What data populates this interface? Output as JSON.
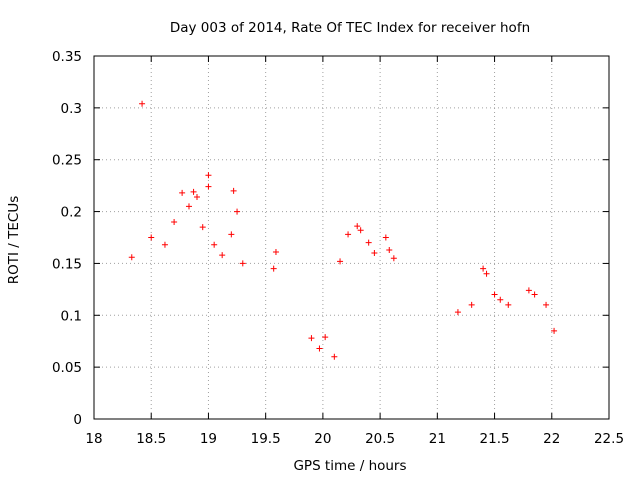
{
  "chart_data": {
    "type": "scatter",
    "title": "Day 003 of 2014, Rate Of TEC Index for receiver hofn",
    "xlabel": "GPS time / hours",
    "ylabel": "ROTI / TECUs",
    "xlim": [
      18,
      22.5
    ],
    "ylim": [
      0,
      0.35
    ],
    "xticks": [
      18,
      18.5,
      19,
      19.5,
      20,
      20.5,
      21,
      21.5,
      22,
      22.5
    ],
    "xtick_labels": [
      "18",
      "18.5",
      "19",
      "19.5",
      "20",
      "20.5",
      "21",
      "21.5",
      "22",
      "22.5"
    ],
    "yticks": [
      0,
      0.05,
      0.1,
      0.15,
      0.2,
      0.25,
      0.3,
      0.35
    ],
    "ytick_labels": [
      "0",
      "0.05",
      "0.1",
      "0.15",
      "0.2",
      "0.25",
      "0.3",
      "0.35"
    ],
    "grid": true,
    "marker": "+",
    "color": "#ff0000",
    "series": [
      {
        "name": "ROTI",
        "points": [
          [
            18.42,
            0.304
          ],
          [
            19.0,
            0.235
          ],
          [
            19.0,
            0.224
          ],
          [
            18.87,
            0.219
          ],
          [
            19.22,
            0.22
          ],
          [
            18.77,
            0.218
          ],
          [
            18.9,
            0.214
          ],
          [
            19.25,
            0.2
          ],
          [
            18.83,
            0.205
          ],
          [
            18.33,
            0.156
          ],
          [
            19.59,
            0.161
          ],
          [
            19.57,
            0.145
          ],
          [
            18.5,
            0.175
          ],
          [
            18.62,
            0.168
          ],
          [
            18.95,
            0.185
          ],
          [
            19.2,
            0.178
          ],
          [
            18.7,
            0.19
          ],
          [
            19.05,
            0.168
          ],
          [
            19.12,
            0.158
          ],
          [
            19.3,
            0.15
          ],
          [
            20.3,
            0.186
          ],
          [
            20.33,
            0.182
          ],
          [
            20.22,
            0.178
          ],
          [
            20.4,
            0.17
          ],
          [
            20.58,
            0.163
          ],
          [
            20.62,
            0.155
          ],
          [
            20.55,
            0.175
          ],
          [
            20.15,
            0.152
          ],
          [
            20.45,
            0.16
          ],
          [
            21.4,
            0.145
          ],
          [
            21.43,
            0.14
          ],
          [
            21.5,
            0.12
          ],
          [
            21.55,
            0.115
          ],
          [
            21.3,
            0.11
          ],
          [
            21.62,
            0.11
          ],
          [
            21.8,
            0.124
          ],
          [
            21.85,
            0.12
          ],
          [
            21.95,
            0.11
          ],
          [
            21.18,
            0.103
          ],
          [
            22.02,
            0.085
          ],
          [
            20.02,
            0.079
          ],
          [
            19.9,
            0.078
          ],
          [
            20.1,
            0.06
          ],
          [
            19.97,
            0.068
          ]
        ]
      }
    ]
  }
}
